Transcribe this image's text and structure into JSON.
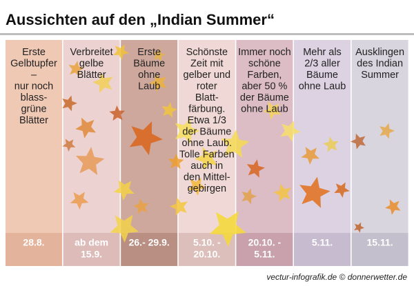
{
  "header": {
    "title": "Aussichten auf den „Indian Summer“"
  },
  "columns": [
    {
      "text": [
        "Erste",
        "Gelbtupfer",
        "–",
        "nur noch",
        "blass-",
        "grüne",
        "Blätter"
      ],
      "date": [
        "28.8."
      ]
    },
    {
      "text": [
        "Verbreitet",
        "gelbe",
        "Blätter"
      ],
      "date": [
        "ab dem",
        "15.9."
      ]
    },
    {
      "text": [
        "Erste",
        "Bäume",
        "ohne",
        "Laub"
      ],
      "date": [
        "26.- 29.9."
      ]
    },
    {
      "text": [
        "Schönste",
        "Zeit mit",
        "gelber und",
        "roter",
        "Blatt-",
        "färbung.",
        "Etwa 1/3",
        "der Bäume",
        "ohne Laub.",
        "Tolle Farben",
        "auch in",
        "den Mittel-",
        "gebirgen"
      ],
      "date": [
        "5.10. -",
        "20.10."
      ]
    },
    {
      "text": [
        "Immer noch",
        "schöne",
        "Farben,",
        "aber 50 %",
        "der Bäume",
        "ohne Laub"
      ],
      "date": [
        "20.10. -",
        "5.11."
      ]
    },
    {
      "text": [
        "Mehr als",
        "2/3 aller",
        "Bäume",
        "ohne Laub"
      ],
      "date": [
        "5.11."
      ]
    },
    {
      "text": [
        "Ausklingen",
        "des Indian",
        "Summer"
      ],
      "date": [
        "15.11."
      ]
    }
  ],
  "footer": {
    "credit": "vectur-infografik.de © donnerwetter.de"
  }
}
